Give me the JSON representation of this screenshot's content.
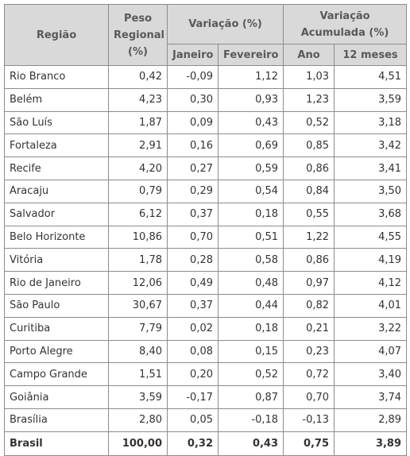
{
  "header": {
    "regiao": "Região",
    "peso_regional": "Peso Regional (%)",
    "variacao": "Variação (%)",
    "variacao_acumulada": "Variação Acumulada (%)",
    "janeiro": "Janeiro",
    "fevereiro": "Fevereiro",
    "ano": "Ano",
    "doze_meses": "12 meses"
  },
  "rows": [
    {
      "regiao": "Rio Branco",
      "peso": "0,42",
      "janeiro": "-0,09",
      "fevereiro": "1,12",
      "ano": "1,03",
      "doze_meses": "4,51"
    },
    {
      "regiao": "Belém",
      "peso": "4,23",
      "janeiro": "0,30",
      "fevereiro": "0,93",
      "ano": "1,23",
      "doze_meses": "3,59"
    },
    {
      "regiao": "São Luís",
      "peso": "1,87",
      "janeiro": "0,09",
      "fevereiro": "0,43",
      "ano": "0,52",
      "doze_meses": "3,18"
    },
    {
      "regiao": "Fortaleza",
      "peso": "2,91",
      "janeiro": "0,16",
      "fevereiro": "0,69",
      "ano": "0,85",
      "doze_meses": "3,42"
    },
    {
      "regiao": "Recife",
      "peso": "4,20",
      "janeiro": "0,27",
      "fevereiro": "0,59",
      "ano": "0,86",
      "doze_meses": "3,41"
    },
    {
      "regiao": "Aracaju",
      "peso": "0,79",
      "janeiro": "0,29",
      "fevereiro": "0,54",
      "ano": "0,84",
      "doze_meses": "3,50"
    },
    {
      "regiao": "Salvador",
      "peso": "6,12",
      "janeiro": "0,37",
      "fevereiro": "0,18",
      "ano": "0,55",
      "doze_meses": "3,68"
    },
    {
      "regiao": "Belo Horizonte",
      "peso": "10,86",
      "janeiro": "0,70",
      "fevereiro": "0,51",
      "ano": "1,22",
      "doze_meses": "4,55"
    },
    {
      "regiao": "Vitória",
      "peso": "1,78",
      "janeiro": "0,28",
      "fevereiro": "0,58",
      "ano": "0,86",
      "doze_meses": "4,19"
    },
    {
      "regiao": "Rio de Janeiro",
      "peso": "12,06",
      "janeiro": "0,49",
      "fevereiro": "0,48",
      "ano": "0,97",
      "doze_meses": "4,12"
    },
    {
      "regiao": "São Paulo",
      "peso": "30,67",
      "janeiro": "0,37",
      "fevereiro": "0,44",
      "ano": "0,82",
      "doze_meses": "4,01"
    },
    {
      "regiao": "Curitiba",
      "peso": "7,79",
      "janeiro": "0,02",
      "fevereiro": "0,18",
      "ano": "0,21",
      "doze_meses": "3,22"
    },
    {
      "regiao": "Porto Alegre",
      "peso": "8,40",
      "janeiro": "0,08",
      "fevereiro": "0,15",
      "ano": "0,23",
      "doze_meses": "4,07"
    },
    {
      "regiao": "Campo Grande",
      "peso": "1,51",
      "janeiro": "0,20",
      "fevereiro": "0,52",
      "ano": "0,72",
      "doze_meses": "3,40"
    },
    {
      "regiao": "Goiânia",
      "peso": "3,59",
      "janeiro": "-0,17",
      "fevereiro": "0,87",
      "ano": "0,70",
      "doze_meses": "3,74"
    },
    {
      "regiao": "Brasília",
      "peso": "2,80",
      "janeiro": "0,05",
      "fevereiro": "-0,18",
      "ano": "-0,13",
      "doze_meses": "2,89"
    }
  ],
  "total": {
    "regiao": "Brasil",
    "peso": "100,00",
    "janeiro": "0,32",
    "fevereiro": "0,43",
    "ano": "0,75",
    "doze_meses": "3,89"
  },
  "colors": {
    "header_bg": "#d9d9d9",
    "header_text": "#595959",
    "border": "#8c8c8c"
  }
}
